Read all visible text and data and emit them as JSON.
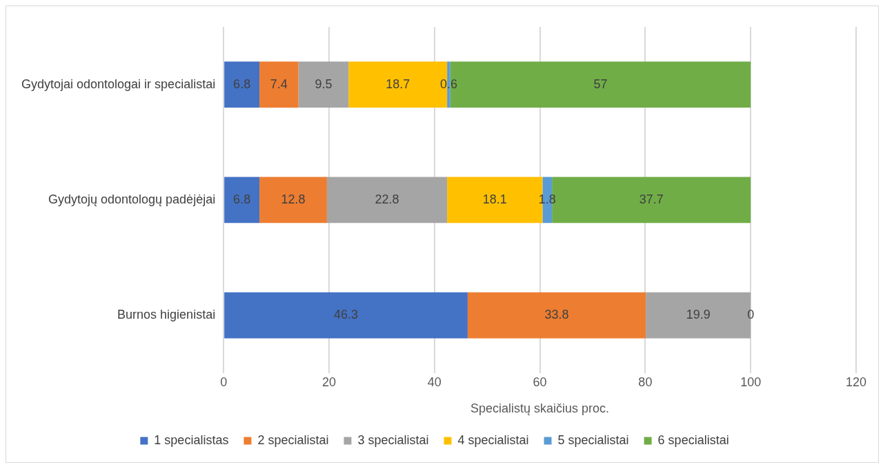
{
  "chart_data": {
    "type": "bar",
    "orientation": "horizontal",
    "stacked": true,
    "xlabel": "Specialistų skaičius proc.",
    "categories": [
      "Gydytojai odontologai ir specialistai",
      "Gydytojų odontologų padėjėjai",
      "Burnos higienistai"
    ],
    "series": [
      {
        "name": "1 specialistas",
        "color": "#4472c4",
        "values": [
          6.8,
          6.8,
          46.3
        ],
        "value_labels": [
          "6.8",
          "6.8",
          "46.3"
        ]
      },
      {
        "name": "2 specialistai",
        "color": "#ed7d31",
        "values": [
          7.4,
          12.8,
          33.8
        ],
        "value_labels": [
          "7.4",
          "12.8",
          "33.8"
        ]
      },
      {
        "name": "3 specialistai",
        "color": "#a5a5a5",
        "values": [
          9.5,
          22.8,
          19.9
        ],
        "value_labels": [
          "9.5",
          "22.8",
          "19.9"
        ]
      },
      {
        "name": "4 specialistai",
        "color": "#ffc000",
        "values": [
          18.7,
          18.1,
          0
        ],
        "value_labels": [
          "18.7",
          "18.1",
          "0"
        ]
      },
      {
        "name": "5 specialistai",
        "color": "#5b9bd5",
        "values": [
          0.6,
          1.8,
          0
        ],
        "value_labels": [
          "0.6",
          "1.8",
          null
        ]
      },
      {
        "name": "6 specialistai",
        "color": "#70ad47",
        "values": [
          57,
          37.7,
          0
        ],
        "value_labels": [
          "57",
          "37.7",
          null
        ]
      }
    ],
    "xlim": [
      0,
      120
    ],
    "xticks": [
      0,
      20,
      40,
      60,
      80,
      100,
      120
    ],
    "grid": "x",
    "legend": "bottom"
  }
}
